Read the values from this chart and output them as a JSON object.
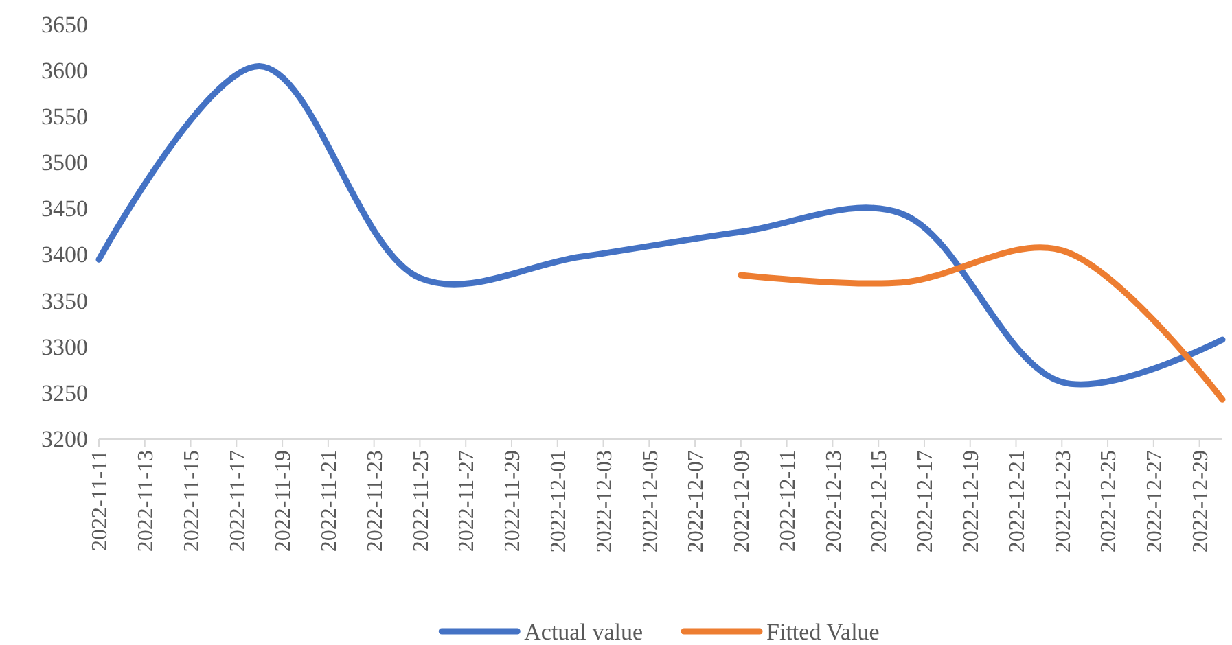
{
  "chart_data": {
    "type": "line",
    "x": [
      "2022-11-11",
      "2022-11-18",
      "2022-11-25",
      "2022-12-02",
      "2022-12-09",
      "2022-12-16",
      "2022-12-23",
      "2022-12-30"
    ],
    "series": [
      {
        "name": "Actual value",
        "color": "#4472c4",
        "values": [
          3395,
          3605,
          3375,
          3398,
          3425,
          3445,
          3262,
          3308
        ]
      },
      {
        "name": "Fitted Value",
        "color": "#ed7d31",
        "values": [
          null,
          null,
          null,
          null,
          3378,
          3370,
          3405,
          3243
        ]
      }
    ],
    "xlim": [
      "2022-11-11",
      "2022-12-30"
    ],
    "xticks": [
      "2022-11-11",
      "2022-11-13",
      "2022-11-15",
      "2022-11-17",
      "2022-11-19",
      "2022-11-21",
      "2022-11-23",
      "2022-11-25",
      "2022-11-27",
      "2022-11-29",
      "2022-12-01",
      "2022-12-03",
      "2022-12-05",
      "2022-12-07",
      "2022-12-09",
      "2022-12-11",
      "2022-12-13",
      "2022-12-15",
      "2022-12-17",
      "2022-12-19",
      "2022-12-21",
      "2022-12-23",
      "2022-12-25",
      "2022-12-27",
      "2022-12-29"
    ],
    "ylim": [
      3200,
      3650
    ],
    "yticks": [
      3200,
      3250,
      3300,
      3350,
      3400,
      3450,
      3500,
      3550,
      3600,
      3650
    ],
    "grid": false,
    "legend": "bottom",
    "marker": "none",
    "line_style": "solid"
  }
}
